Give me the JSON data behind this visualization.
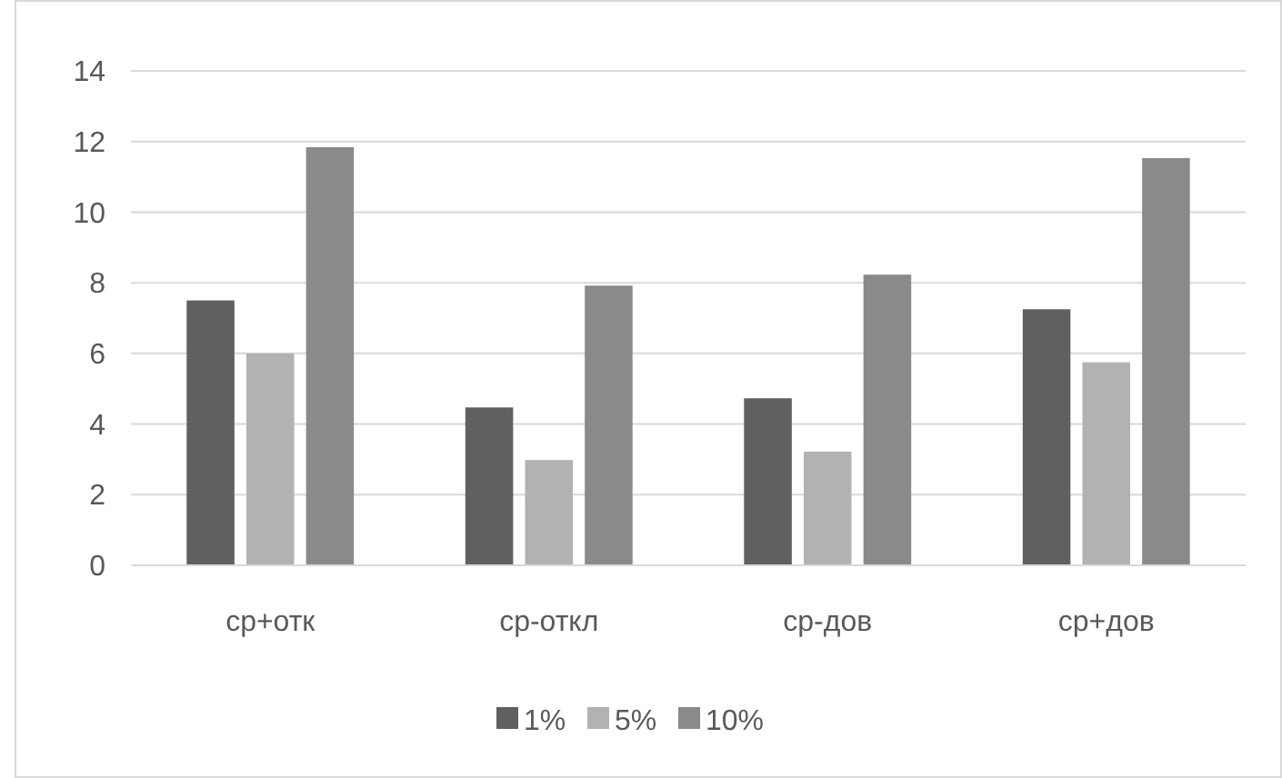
{
  "chart_data": {
    "type": "bar",
    "categories": [
      "ср+отк",
      "ср-откл",
      "ср-дов",
      "ср+дов"
    ],
    "series": [
      {
        "name": "1%",
        "color": "#606060",
        "values": [
          7.5,
          4.47,
          4.73,
          7.25
        ]
      },
      {
        "name": "5%",
        "color": "#b2b2b2",
        "values": [
          6.0,
          2.98,
          3.22,
          5.75
        ]
      },
      {
        "name": "10%",
        "color": "#8a8a8a",
        "values": [
          11.84,
          7.92,
          8.23,
          11.53
        ]
      }
    ],
    "ylim": [
      0,
      14
    ],
    "yticks": [
      0,
      2,
      4,
      6,
      8,
      10,
      12,
      14
    ],
    "grid": "y",
    "legend": "bottom"
  }
}
